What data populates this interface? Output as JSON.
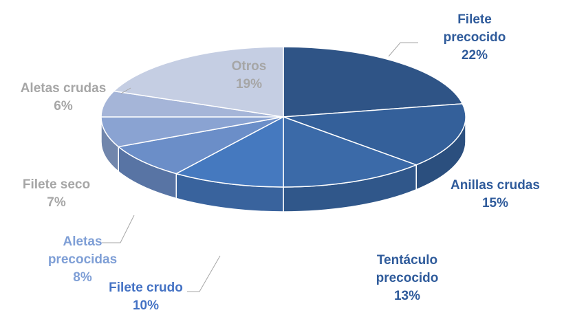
{
  "chart_data": {
    "type": "pie3d",
    "categories": [
      "Filete precocido",
      "Anillas crudas",
      "Tentáculo precocido",
      "Filete crudo",
      "Aletas precocidas",
      "Filete seco",
      "Aletas crudas",
      "Otros"
    ],
    "values": [
      22,
      15,
      13,
      10,
      8,
      7,
      6,
      19
    ],
    "value_labels": [
      "22%",
      "15%",
      "13%",
      "10%",
      "8%",
      "7%",
      "6%",
      "19%"
    ],
    "colors": [
      "#2f5486",
      "#34609a",
      "#3b6aa8",
      "#4579bf",
      "#6b8ec8",
      "#8aa3d2",
      "#a5b5d8",
      "#c5cee3"
    ],
    "label_colors": [
      "#2f5b9b",
      "#2f5b9b",
      "#2f5b9b",
      "#4472c4",
      "#7f9fd6",
      "#a6a6a6",
      "#a6a6a6",
      "#a6a6a6"
    ]
  }
}
